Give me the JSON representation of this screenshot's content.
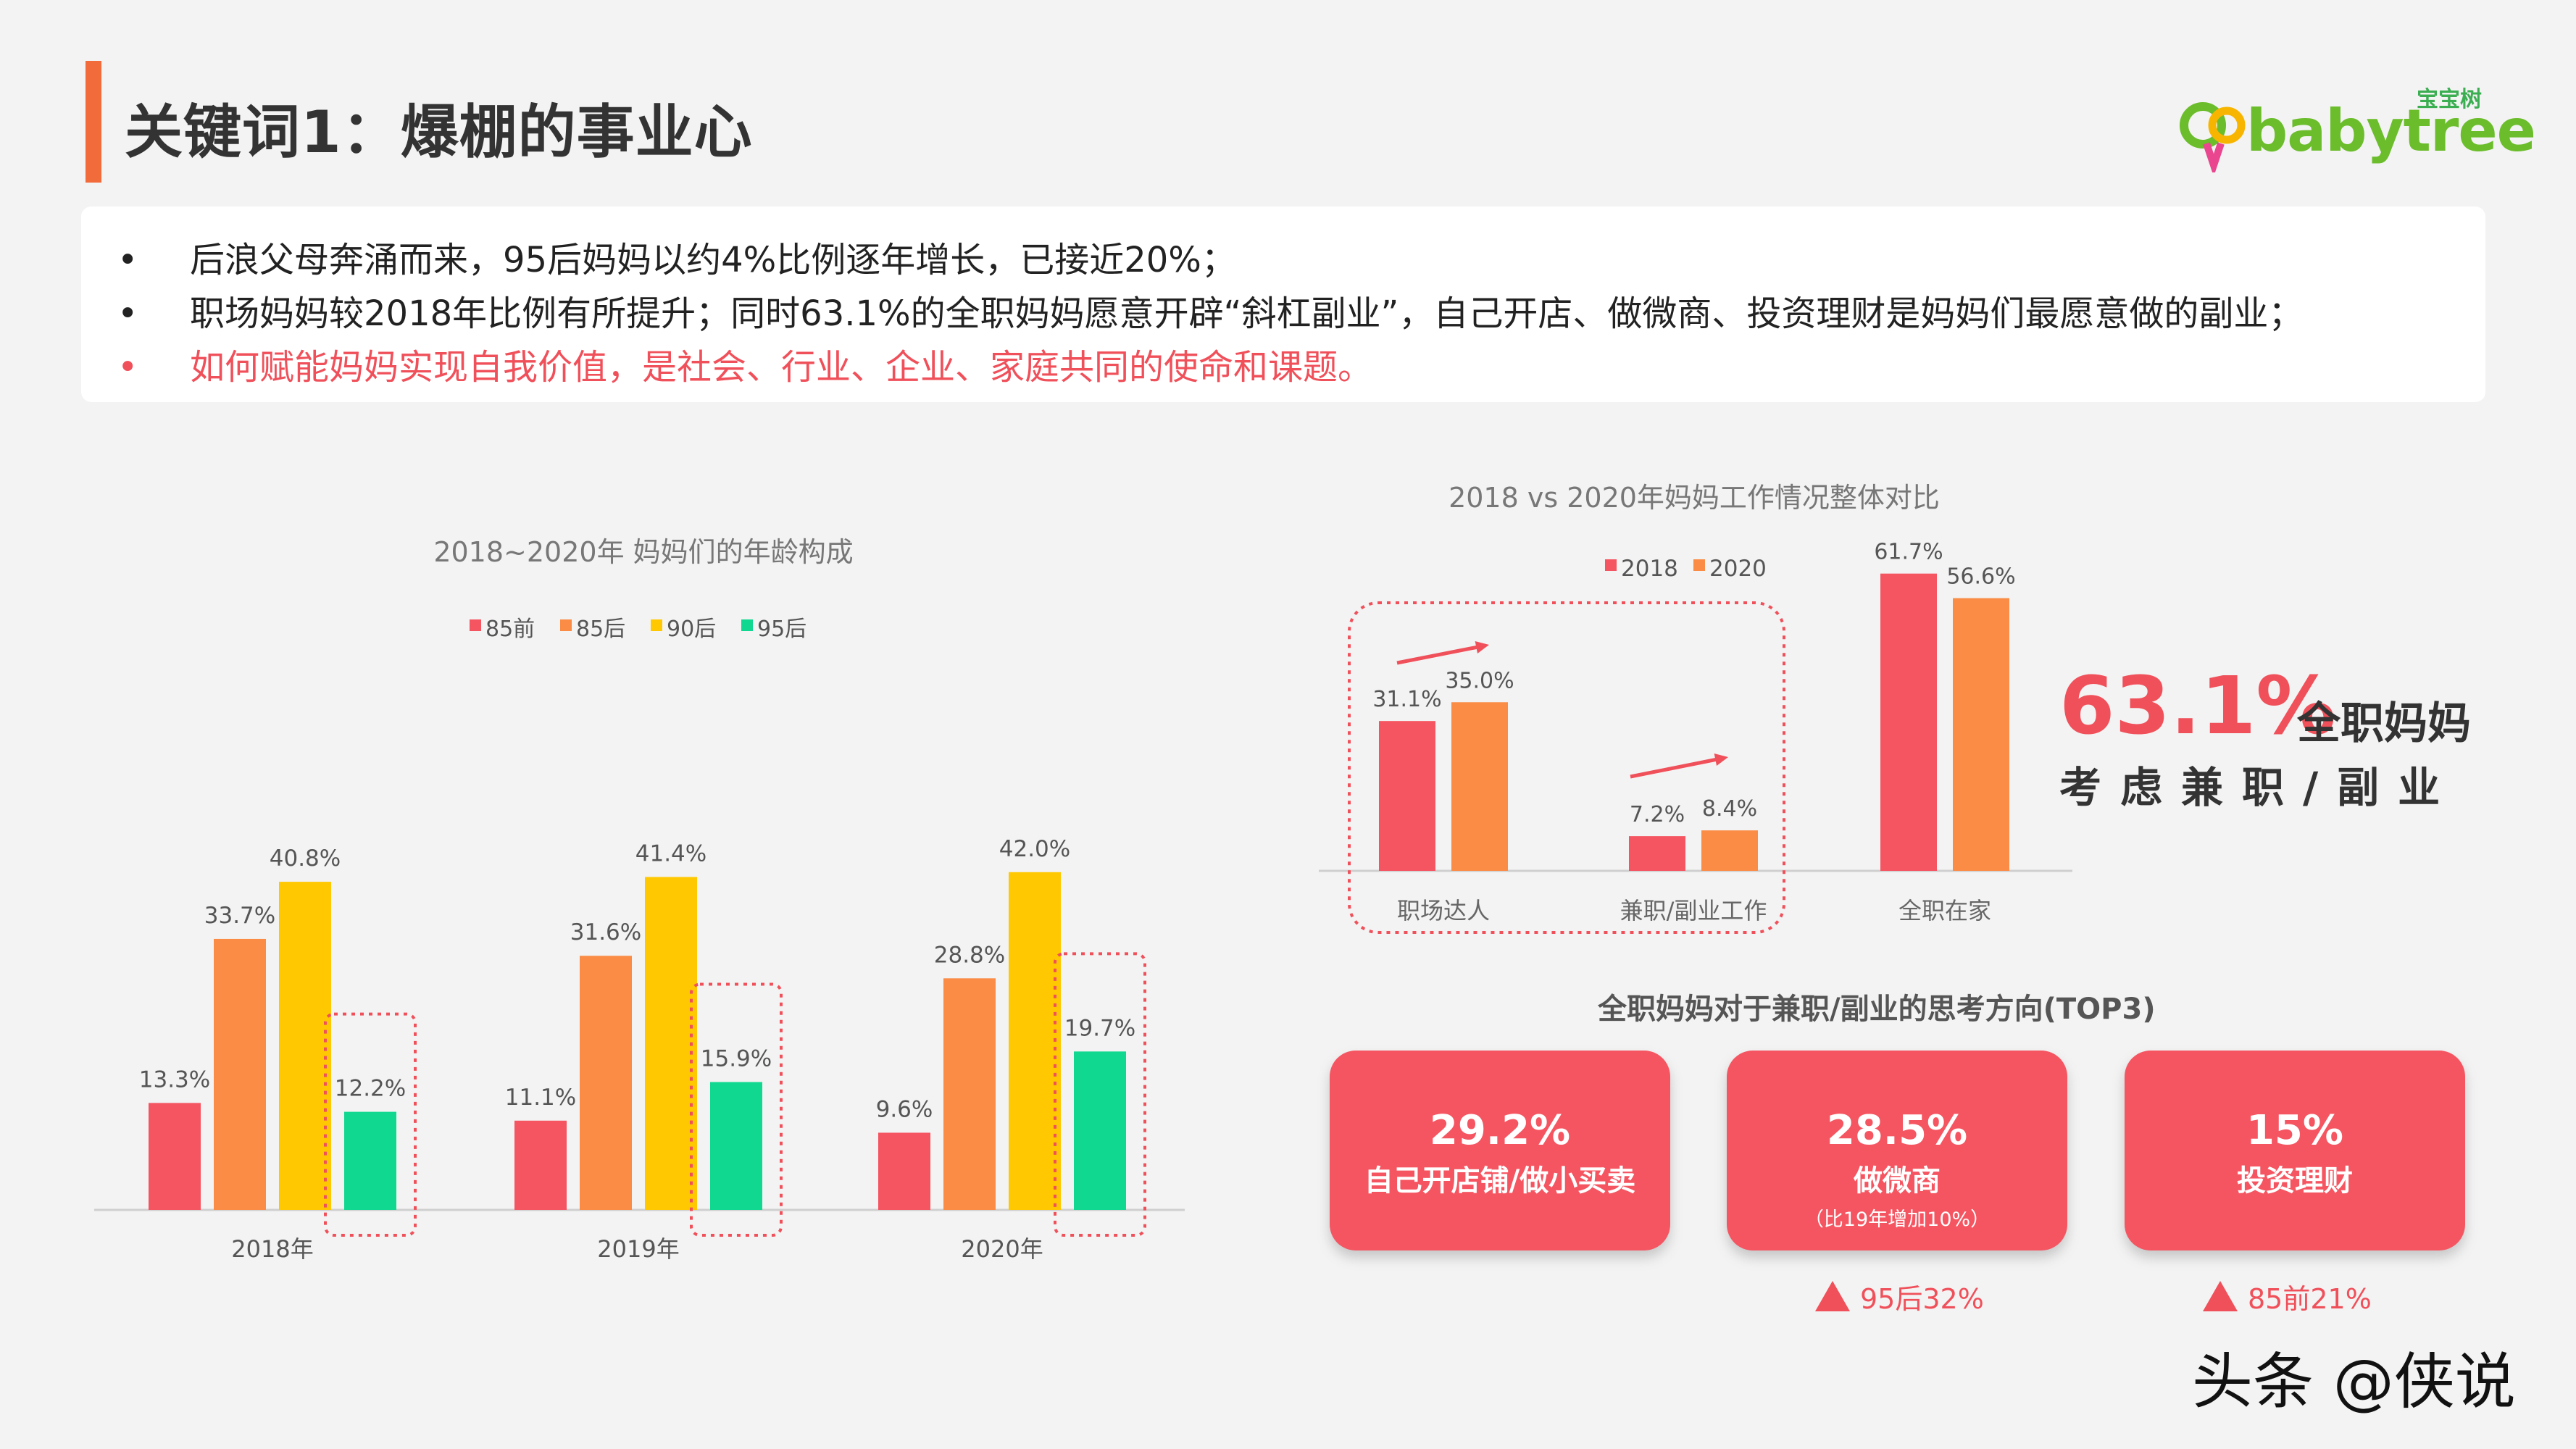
{
  "title": "关键词1：爆棚的事业心",
  "logo": {
    "text": "babytree",
    "cn": "宝宝树"
  },
  "bullets": [
    {
      "text": "后浪父母奔涌而来，95后妈妈以约4%比例逐年增长，已接近20%；",
      "highlight": false
    },
    {
      "text": "职场妈妈较2018年比例有所提升；同时63.1%的全职妈妈愿意开辟“斜杠副业”，自己开店、做微商、投资理财是妈妈们最愿意做的副业；",
      "highlight": true
    },
    {
      "text": "如何赋能妈妈实现自我价值，是社会、行业、企业、家庭共同的使命和课题。",
      "highlight": true
    }
  ],
  "bullet_marker": "•",
  "highlight": {
    "pct": "63.1%",
    "label": "全职妈妈",
    "sub": "考虑兼职/副业"
  },
  "top3": {
    "title": "全职妈妈对于兼职/副业的思考方向(TOP3)",
    "cards": [
      {
        "pct": "29.2%",
        "label": "自己开店铺/做小买卖",
        "sub": ""
      },
      {
        "pct": "28.5%",
        "label": "做微商",
        "sub": "（比19年增加10%）"
      },
      {
        "pct": "15%",
        "label": "投资理财",
        "sub": ""
      }
    ],
    "notes": [
      "95后32%",
      "85前21%"
    ]
  },
  "watermark": "头条 @侠说",
  "colors": {
    "accent": "#f26b3a",
    "red": "#f55561",
    "orange": "#fa8c46",
    "yellow": "#ffc800",
    "green": "#10d890"
  },
  "chart_data": [
    {
      "type": "bar",
      "title": "2018~2020年   妈妈们的年龄构成",
      "categories": [
        "2018年",
        "2019年",
        "2020年"
      ],
      "series": [
        {
          "name": "85前",
          "values": [
            13.3,
            11.1,
            9.6
          ],
          "color": "#f55561"
        },
        {
          "name": "85后",
          "values": [
            33.7,
            31.6,
            28.8
          ],
          "color": "#fa8c46"
        },
        {
          "name": "90后",
          "values": [
            40.8,
            41.4,
            42.0
          ],
          "color": "#ffc800"
        },
        {
          "name": "95后",
          "values": [
            12.2,
            15.9,
            19.7
          ],
          "color": "#10d890"
        }
      ],
      "unit": "%",
      "legend": "top",
      "ylim": [
        0,
        45
      ],
      "grid": false
    },
    {
      "type": "bar",
      "title": "2018 vs 2020年妈妈工作情况整体对比",
      "categories": [
        "职场达人",
        "兼职/副业工作",
        "全职在家"
      ],
      "series": [
        {
          "name": "2018",
          "values": [
            31.1,
            7.2,
            61.7
          ],
          "color": "#f55561"
        },
        {
          "name": "2020",
          "values": [
            35.0,
            8.4,
            56.6
          ],
          "color": "#fa8c46"
        }
      ],
      "unit": "%",
      "legend": "top",
      "ylim": [
        0,
        65
      ],
      "grid": false
    }
  ]
}
